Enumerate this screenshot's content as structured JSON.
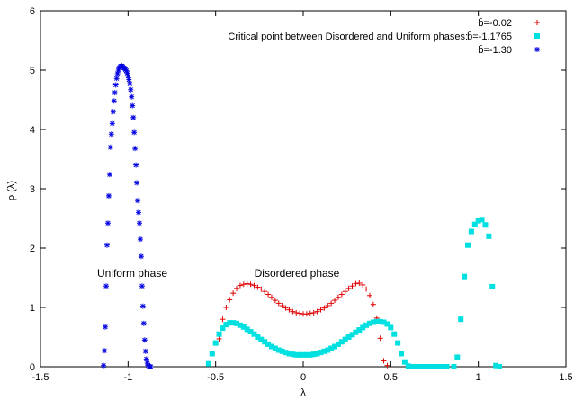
{
  "chart_data": {
    "type": "scatter",
    "title": "",
    "xlabel": "λ",
    "ylabel": "ρ (λ)",
    "xlim": [
      -1.5,
      1.5
    ],
    "ylim": [
      0,
      6
    ],
    "xticks": [
      "-1.5",
      "-1",
      "-0.5",
      "0",
      "0.5",
      "1",
      "1.5"
    ],
    "yticks": [
      "0",
      "1",
      "2",
      "3",
      "4",
      "5",
      "6"
    ],
    "grid": false,
    "legend_position": "top-right",
    "annotations": [
      {
        "text": "Uniform  phase",
        "x": -1.05,
        "y": 1.55
      },
      {
        "text": "Disordered phase",
        "x": 0.02,
        "y": 1.55
      }
    ],
    "series": [
      {
        "name": "b̄=-0.02",
        "marker": "plus",
        "color": "#e00000",
        "x": [
          -0.48,
          -0.46,
          -0.44,
          -0.42,
          -0.4,
          -0.38,
          -0.36,
          -0.34,
          -0.32,
          -0.3,
          -0.28,
          -0.26,
          -0.24,
          -0.22,
          -0.2,
          -0.18,
          -0.16,
          -0.14,
          -0.12,
          -0.1,
          -0.08,
          -0.06,
          -0.04,
          -0.02,
          0.0,
          0.02,
          0.04,
          0.06,
          0.08,
          0.1,
          0.12,
          0.14,
          0.16,
          0.18,
          0.2,
          0.22,
          0.24,
          0.26,
          0.28,
          0.3,
          0.32,
          0.34,
          0.36,
          0.38,
          0.4,
          0.42,
          0.44,
          0.46,
          0.48
        ],
        "y": [
          0.47,
          0.8,
          1.0,
          1.13,
          1.24,
          1.32,
          1.37,
          1.39,
          1.4,
          1.39,
          1.37,
          1.34,
          1.31,
          1.27,
          1.22,
          1.17,
          1.12,
          1.07,
          1.03,
          0.99,
          0.96,
          0.93,
          0.91,
          0.9,
          0.89,
          0.89,
          0.9,
          0.91,
          0.93,
          0.96,
          0.99,
          1.03,
          1.07,
          1.12,
          1.17,
          1.22,
          1.27,
          1.32,
          1.36,
          1.4,
          1.41,
          1.38,
          1.31,
          1.2,
          1.05,
          0.82,
          0.48,
          0.1,
          0.02
        ]
      },
      {
        "name": "b̄=-1.1765",
        "legend_prefix": "Critical point between Disordered and Uniform phases:",
        "marker": "square",
        "color": "#00e0e0",
        "x": [
          -0.54,
          -0.52,
          -0.5,
          -0.48,
          -0.46,
          -0.44,
          -0.42,
          -0.4,
          -0.38,
          -0.36,
          -0.34,
          -0.32,
          -0.3,
          -0.28,
          -0.26,
          -0.24,
          -0.22,
          -0.2,
          -0.18,
          -0.16,
          -0.14,
          -0.12,
          -0.1,
          -0.08,
          -0.06,
          -0.04,
          -0.02,
          0.0,
          0.02,
          0.04,
          0.06,
          0.08,
          0.1,
          0.12,
          0.14,
          0.16,
          0.18,
          0.2,
          0.22,
          0.24,
          0.26,
          0.28,
          0.3,
          0.32,
          0.34,
          0.36,
          0.38,
          0.4,
          0.42,
          0.44,
          0.46,
          0.48,
          0.5,
          0.52,
          0.54,
          0.56,
          0.58,
          0.6,
          0.62,
          0.64,
          0.66,
          0.68,
          0.7,
          0.72,
          0.74,
          0.76,
          0.78,
          0.8,
          0.82,
          0.86,
          0.88,
          0.9,
          0.92,
          0.94,
          0.96,
          0.98,
          1.0,
          1.02,
          1.04,
          1.06,
          1.08,
          1.1,
          1.12
        ],
        "y": [
          0.05,
          0.22,
          0.4,
          0.55,
          0.65,
          0.71,
          0.74,
          0.74,
          0.73,
          0.7,
          0.67,
          0.63,
          0.59,
          0.55,
          0.5,
          0.46,
          0.42,
          0.38,
          0.34,
          0.31,
          0.28,
          0.26,
          0.24,
          0.22,
          0.21,
          0.2,
          0.2,
          0.2,
          0.2,
          0.2,
          0.21,
          0.22,
          0.24,
          0.26,
          0.28,
          0.31,
          0.34,
          0.38,
          0.42,
          0.46,
          0.5,
          0.54,
          0.58,
          0.62,
          0.66,
          0.7,
          0.73,
          0.75,
          0.76,
          0.76,
          0.75,
          0.72,
          0.66,
          0.55,
          0.4,
          0.22,
          0.08,
          0.01,
          0.0,
          0.0,
          0.0,
          0.0,
          0.0,
          0.0,
          0.0,
          0.0,
          0.0,
          0.0,
          0.0,
          0.0,
          0.16,
          0.8,
          1.52,
          2.05,
          2.28,
          2.4,
          2.46,
          2.48,
          2.39,
          2.2,
          1.35,
          0.02,
          0.0
        ]
      },
      {
        "name": "b̄=-1.30",
        "marker": "star",
        "color": "#0000e0",
        "x": [
          -1.14,
          -1.135,
          -1.13,
          -1.125,
          -1.12,
          -1.115,
          -1.11,
          -1.105,
          -1.1,
          -1.095,
          -1.09,
          -1.085,
          -1.08,
          -1.075,
          -1.07,
          -1.065,
          -1.06,
          -1.055,
          -1.05,
          -1.045,
          -1.04,
          -1.035,
          -1.03,
          -1.025,
          -1.02,
          -1.015,
          -1.01,
          -1.005,
          -1.0,
          -0.995,
          -0.99,
          -0.985,
          -0.98,
          -0.975,
          -0.97,
          -0.965,
          -0.96,
          -0.955,
          -0.95,
          -0.945,
          -0.94,
          -0.935,
          -0.93,
          -0.925,
          -0.92,
          -0.915,
          -0.91,
          -0.905,
          -0.9,
          -0.895,
          -0.89,
          -0.885,
          -0.88,
          -0.875,
          -0.87
        ],
        "y": [
          0.02,
          0.27,
          0.67,
          1.36,
          2.05,
          2.42,
          2.88,
          3.24,
          3.7,
          3.92,
          4.1,
          4.3,
          4.48,
          4.62,
          4.75,
          4.86,
          4.94,
          5.0,
          5.04,
          5.06,
          5.07,
          5.07,
          5.06,
          5.04,
          5.03,
          5.01,
          4.99,
          4.95,
          4.9,
          4.84,
          4.77,
          4.67,
          4.55,
          4.4,
          4.2,
          3.95,
          3.68,
          3.4,
          3.1,
          2.8,
          2.6,
          2.42,
          2.15,
          1.86,
          1.36,
          1.02,
          0.73,
          0.45,
          0.26,
          0.13,
          0.06,
          0.02,
          0.0,
          0.0,
          0.0
        ]
      }
    ]
  }
}
